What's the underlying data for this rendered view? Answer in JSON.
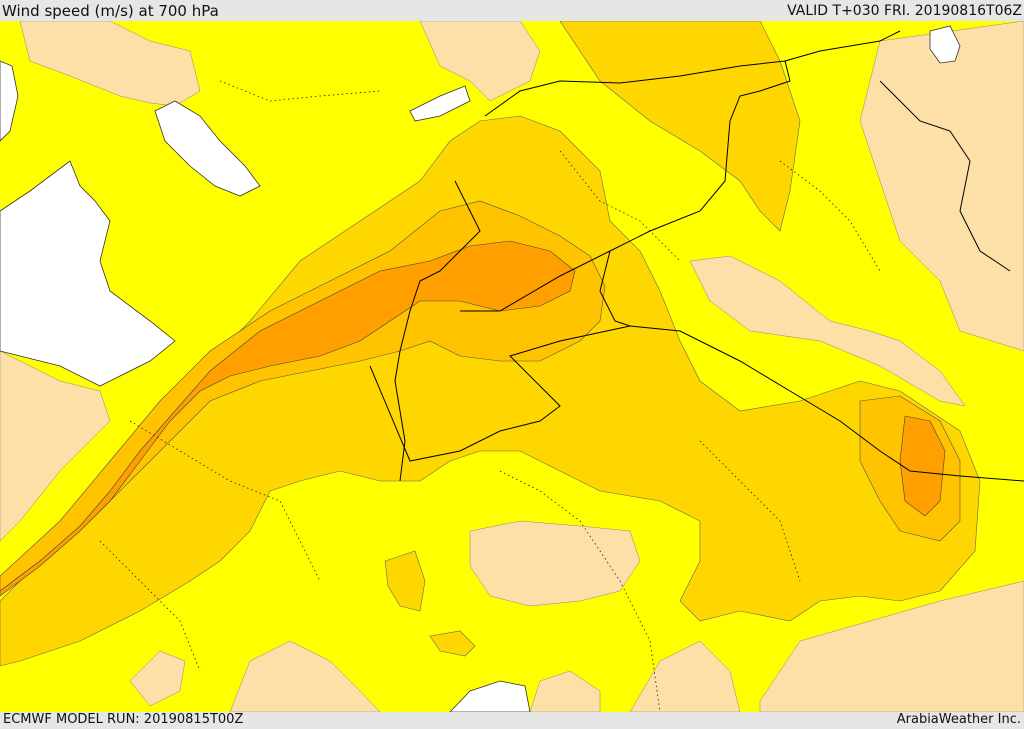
{
  "header": {
    "title": "Wind speed (m/s) at 700 hPa",
    "valid": "VALID T+030 FRI. 20190816T06Z"
  },
  "footer": {
    "model_run": "ECMWF MODEL RUN: 20190815T00Z",
    "credit": "ArabiaWeather Inc."
  },
  "map": {
    "colors": {
      "sea": "#ffffff",
      "calm": "#fde0a8",
      "light": "#ffff00",
      "moderate": "#ffd700",
      "fresh": "#ffc300",
      "strong": "#ffa000",
      "border": "#000000"
    }
  }
}
